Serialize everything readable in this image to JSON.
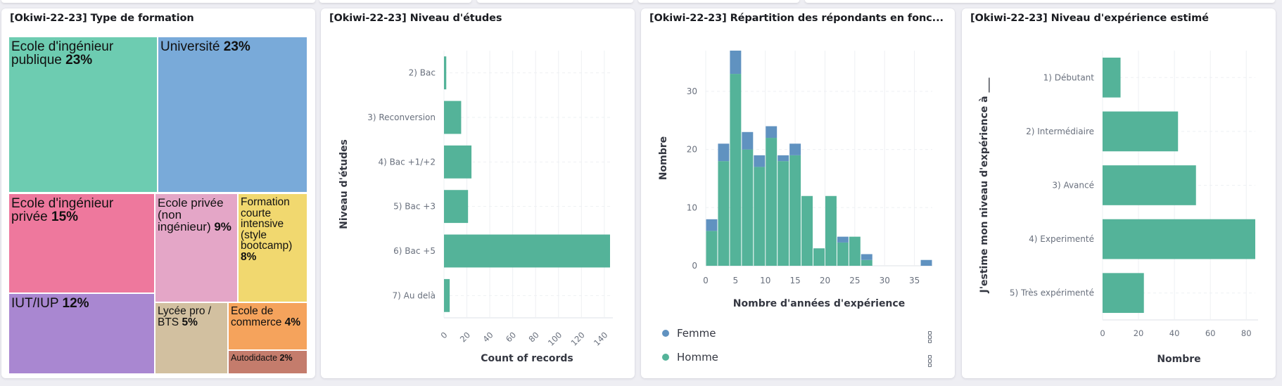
{
  "dashboard": {
    "panels": [
      {
        "title": "[Okiwi-22-23] Type de formation"
      },
      {
        "title": "[Okiwi-22-23] Niveau d'études"
      },
      {
        "title": "[Okiwi-22-23] Répartition des répondants en fonc..."
      },
      {
        "title": "[Okiwi-22-23] Niveau d'expérience estimé"
      }
    ]
  },
  "colors": {
    "green": "#54b399",
    "blue": "#6092c0"
  },
  "chart_data": [
    {
      "type": "treemap",
      "title": "[Okiwi-22-23] Type de formation",
      "items": [
        {
          "label": "Ecole d'ingénieur publique",
          "pct": "23%",
          "value": 23,
          "color": "#6dccb1"
        },
        {
          "label": "Université",
          "pct": "23%",
          "value": 23,
          "color": "#79aad9"
        },
        {
          "label": "Ecole d'ingénieur privée",
          "pct": "15%",
          "value": 15,
          "color": "#ee789d"
        },
        {
          "label": "IUT/IUP",
          "pct": "12%",
          "value": 12,
          "color": "#a987d1"
        },
        {
          "label": "Ecole privée (non ingénieur)",
          "pct": "9%",
          "value": 9,
          "color": "#e4a6c7"
        },
        {
          "label": "Formation courte intensive (style bootcamp)",
          "pct": "8%",
          "value": 8,
          "color": "#f1d86f"
        },
        {
          "label": "Lycée pro / BTS",
          "pct": "5%",
          "value": 5,
          "color": "#d2c0a0"
        },
        {
          "label": "Ecole de commerce",
          "pct": "4%",
          "value": 4,
          "color": "#f5a35c"
        },
        {
          "label": "Autodidacte",
          "pct": "2%",
          "value": 2,
          "color": "#c47c6c"
        }
      ]
    },
    {
      "type": "bar",
      "orientation": "horizontal",
      "title": "[Okiwi-22-23] Niveau d'études",
      "categories": [
        "2) Bac",
        "3) Reconversion",
        "4) Bac +1/+2",
        "5) Bac +3",
        "6) Bac +5",
        "7) Au delà"
      ],
      "values": [
        2,
        15,
        24,
        21,
        145,
        5
      ],
      "xlabel": "Count of records",
      "ylabel": "Niveau d'études",
      "xlim": [
        0,
        145
      ],
      "xticks": [
        "0",
        "20",
        "40",
        "60",
        "80",
        "100",
        "120",
        "140"
      ],
      "grid": true
    },
    {
      "type": "bar",
      "subtype": "stacked-histogram",
      "title": "[Okiwi-22-23] Répartition des répondants en fonc...",
      "x_bins": [
        [
          0,
          2
        ],
        [
          2,
          4
        ],
        [
          4,
          6
        ],
        [
          6,
          8
        ],
        [
          8,
          10
        ],
        [
          10,
          12
        ],
        [
          12,
          14
        ],
        [
          14,
          16
        ],
        [
          16,
          18
        ],
        [
          18,
          20
        ],
        [
          20,
          22
        ],
        [
          22,
          24
        ],
        [
          24,
          26
        ],
        [
          26,
          28
        ],
        [
          36,
          38
        ]
      ],
      "series": [
        {
          "name": "Homme",
          "values": [
            6,
            18,
            33,
            20,
            17,
            22,
            18,
            19,
            12,
            3,
            12,
            4,
            5,
            1,
            0
          ]
        },
        {
          "name": "Femme",
          "values": [
            2,
            3,
            4,
            3,
            2,
            2,
            1,
            2,
            0,
            0,
            0,
            1,
            0,
            1,
            1
          ]
        }
      ],
      "xlabel": "Nombre d'années d'expérience",
      "ylabel": "Nombre",
      "xlim": [
        0,
        38
      ],
      "ylim": [
        0,
        37
      ],
      "xticks": [
        "0",
        "5",
        "10",
        "15",
        "20",
        "25",
        "30",
        "35"
      ],
      "yticks": [
        "0",
        "10",
        "20",
        "30"
      ],
      "legend": {
        "position": "bottom",
        "entries": [
          "Femme",
          "Homme"
        ]
      },
      "grid": true
    },
    {
      "type": "bar",
      "orientation": "horizontal",
      "title": "[Okiwi-22-23] Niveau d'expérience estimé",
      "categories": [
        "1) Débutant",
        "2) Intermédiaire",
        "3) Avancé",
        "4) Experimenté",
        "5) Très expérimenté"
      ],
      "values": [
        10,
        42,
        52,
        85,
        23
      ],
      "xlabel": "Nombre",
      "ylabel": "J'estime mon niveau d'expérience à ___",
      "xlim": [
        0,
        85
      ],
      "xticks": [
        "0",
        "20",
        "40",
        "60",
        "80"
      ],
      "grid": true
    }
  ]
}
